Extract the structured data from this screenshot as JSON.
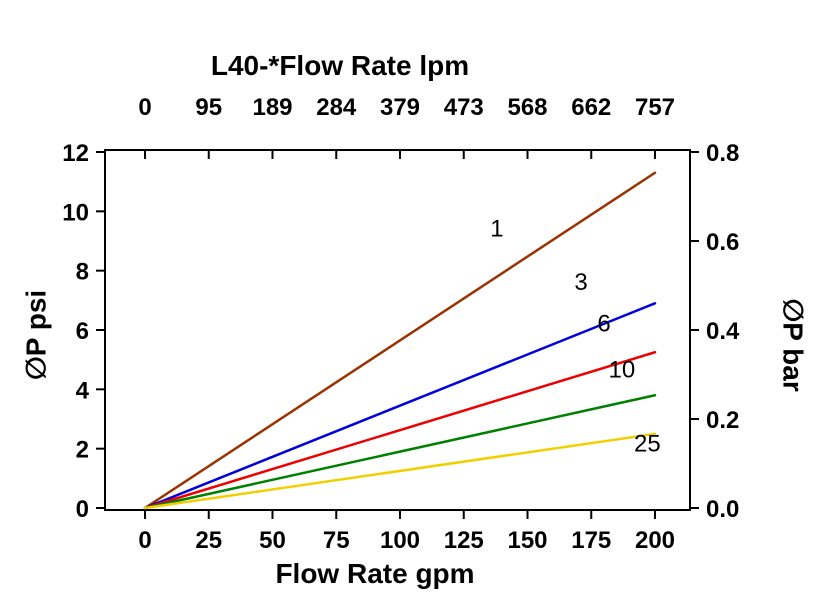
{
  "chart_data": {
    "type": "line",
    "title": "L40-*Flow Rate lpm",
    "xlabel": "Flow Rate gpm",
    "ylabel_left": "∅P psi",
    "ylabel_right": "∅P bar",
    "x_bottom_ticks": [
      "0",
      "25",
      "50",
      "75",
      "100",
      "125",
      "150",
      "175",
      "200"
    ],
    "x_top_ticks": [
      "0",
      "95",
      "189",
      "284",
      "379",
      "473",
      "568",
      "662",
      "757"
    ],
    "y_left_ticks": [
      "0",
      "2",
      "4",
      "6",
      "8",
      "10",
      "12"
    ],
    "y_right_ticks": [
      "0.0",
      "0.2",
      "0.4",
      "0.6",
      "0.8"
    ],
    "xlim": [
      0,
      200
    ],
    "ylim_left": [
      0,
      12
    ],
    "ylim_right": [
      0,
      0.8
    ],
    "grid": false,
    "legend_position": "inline-labels",
    "axis_color": "#000000",
    "background_color": "#ffffff",
    "series": [
      {
        "name": "1",
        "color": "#993300",
        "x": [
          0,
          200
        ],
        "y": [
          0,
          11.3
        ],
        "label": {
          "text": "1",
          "x": 138,
          "y": 9.15
        }
      },
      {
        "name": "3",
        "color": "#0000dd",
        "x": [
          0,
          200
        ],
        "y": [
          0,
          6.9
        ],
        "label": {
          "text": "3",
          "x": 171,
          "y": 7.35
        }
      },
      {
        "name": "6",
        "color": "#ee0000",
        "x": [
          0,
          200
        ],
        "y": [
          0,
          5.25
        ],
        "label": {
          "text": "6",
          "x": 180,
          "y": 5.95
        }
      },
      {
        "name": "10",
        "color": "#008000",
        "x": [
          0,
          200
        ],
        "y": [
          0,
          3.8
        ],
        "label": {
          "text": "10",
          "x": 187,
          "y": 4.4
        }
      },
      {
        "name": "25",
        "color": "#f0d000",
        "x": [
          0,
          200
        ],
        "y": [
          0,
          2.5
        ],
        "label": {
          "text": "25",
          "x": 197,
          "y": 1.9
        }
      }
    ]
  }
}
